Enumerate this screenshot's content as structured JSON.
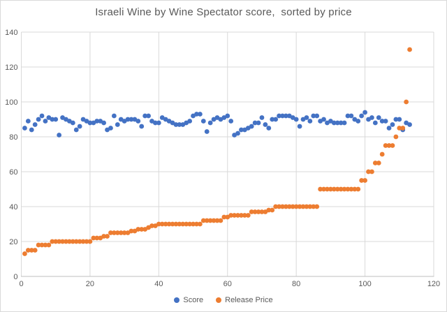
{
  "title": "Israeli Wine by Wine Spectator score,  sorted by price",
  "colors": {
    "background": "#ffffff",
    "frame_border": "#d9d9d9",
    "gridline": "#d9d9d9",
    "axis_line": "#bfbfbf",
    "tick_label": "#595959",
    "title_text": "#595959",
    "score": "#4472c4",
    "release_price": "#ed7d31"
  },
  "axes": {
    "x": {
      "min": 0,
      "max": 120,
      "ticks": [
        0,
        20,
        40,
        60,
        80,
        100,
        120
      ]
    },
    "y": {
      "min": 0,
      "max": 140,
      "ticks": [
        0,
        20,
        40,
        60,
        80,
        100,
        120,
        140
      ]
    }
  },
  "legend": {
    "items": [
      {
        "label": "Score",
        "color": "#4472c4"
      },
      {
        "label": "Release Price",
        "color": "#ed7d31"
      }
    ]
  },
  "chart_data": {
    "type": "scatter",
    "title": "Israeli Wine by Wine Spectator score,  sorted by price",
    "xlabel": "",
    "ylabel": "",
    "xlim": [
      0,
      120
    ],
    "ylim": [
      0,
      140
    ],
    "grid": true,
    "legend_position": "bottom",
    "x": [
      1,
      2,
      3,
      4,
      5,
      6,
      7,
      8,
      9,
      10,
      11,
      12,
      13,
      14,
      15,
      16,
      17,
      18,
      19,
      20,
      21,
      22,
      23,
      24,
      25,
      26,
      27,
      28,
      29,
      30,
      31,
      32,
      33,
      34,
      35,
      36,
      37,
      38,
      39,
      40,
      41,
      42,
      43,
      44,
      45,
      46,
      47,
      48,
      49,
      50,
      51,
      52,
      53,
      54,
      55,
      56,
      57,
      58,
      59,
      60,
      61,
      62,
      63,
      64,
      65,
      66,
      67,
      68,
      69,
      70,
      71,
      72,
      73,
      74,
      75,
      76,
      77,
      78,
      79,
      80,
      81,
      82,
      83,
      84,
      85,
      86,
      87,
      88,
      89,
      90,
      91,
      92,
      93,
      94,
      95,
      96,
      97,
      98,
      99,
      100,
      101,
      102,
      103,
      104,
      105,
      106,
      107,
      108,
      109,
      110,
      111,
      112,
      113
    ],
    "series": [
      {
        "name": "Score",
        "color": "#4472c4",
        "values": [
          85,
          89,
          84,
          87,
          90,
          92,
          89,
          91,
          90,
          90,
          81,
          91,
          90,
          89,
          88,
          84,
          86,
          90,
          89,
          88,
          88,
          89,
          89,
          88,
          84,
          85,
          92,
          87,
          90,
          89,
          90,
          90,
          90,
          89,
          86,
          92,
          92,
          89,
          88,
          88,
          91,
          90,
          89,
          88,
          87,
          87,
          87,
          88,
          89,
          92,
          93,
          93,
          89,
          83,
          88,
          90,
          91,
          90,
          91,
          92,
          89,
          81,
          82,
          84,
          84,
          85,
          86,
          88,
          88,
          91,
          87,
          85,
          90,
          90,
          92,
          92,
          92,
          92,
          91,
          90,
          86,
          90,
          91,
          89,
          92,
          92,
          89,
          90,
          88,
          89,
          88,
          88,
          88,
          88,
          92,
          92,
          90,
          89,
          92,
          94,
          90,
          91,
          88,
          91,
          89,
          89,
          85,
          87,
          90,
          90,
          84,
          88,
          87
        ]
      },
      {
        "name": "Release Price",
        "color": "#ed7d31",
        "values": [
          13,
          15,
          15,
          15,
          18,
          18,
          18,
          18,
          20,
          20,
          20,
          20,
          20,
          20,
          20,
          20,
          20,
          20,
          20,
          20,
          22,
          22,
          22,
          23,
          23,
          25,
          25,
          25,
          25,
          25,
          25,
          26,
          26,
          27,
          27,
          27,
          28,
          29,
          29,
          30,
          30,
          30,
          30,
          30,
          30,
          30,
          30,
          30,
          30,
          30,
          30,
          30,
          32,
          32,
          32,
          32,
          32,
          32,
          34,
          34,
          35,
          35,
          35,
          35,
          35,
          35,
          37,
          37,
          37,
          37,
          37,
          38,
          38,
          40,
          40,
          40,
          40,
          40,
          40,
          40,
          40,
          40,
          40,
          40,
          40,
          40,
          50,
          50,
          50,
          50,
          50,
          50,
          50,
          50,
          50,
          50,
          50,
          50,
          55,
          55,
          60,
          60,
          65,
          65,
          70,
          75,
          75,
          75,
          80,
          85,
          85,
          100,
          130
        ]
      }
    ]
  }
}
